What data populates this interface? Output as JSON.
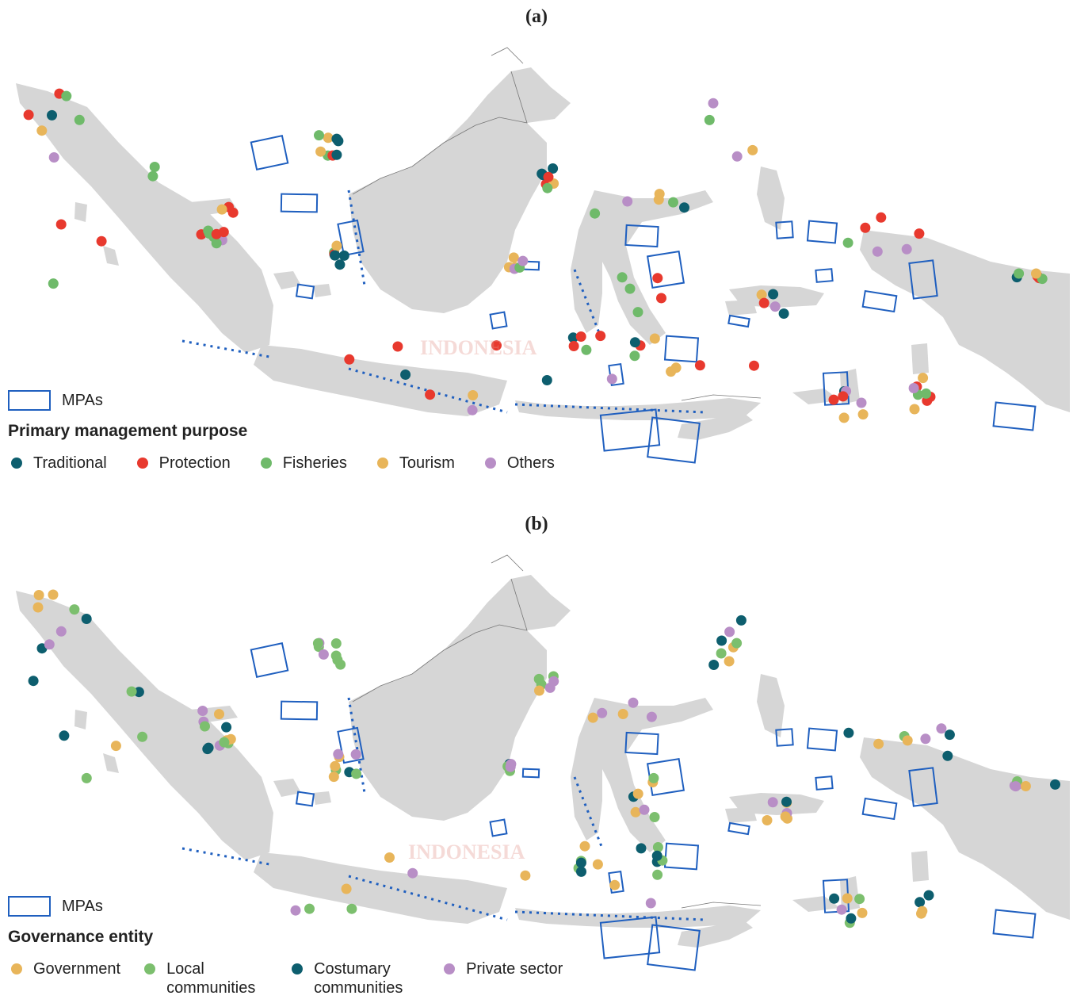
{
  "panels": [
    {
      "label": "(a)",
      "country_label": "INDONESIA",
      "mpa_label": "MPAs",
      "legend_title": "Primary management purpose",
      "legend": [
        {
          "label": "Traditional",
          "color": "#0d5e6e"
        },
        {
          "label": "Protection",
          "color": "#e8392e"
        },
        {
          "label": "Fisheries",
          "color": "#6fba6a"
        },
        {
          "label": "Tourism",
          "color": "#e8b55a"
        },
        {
          "label": "Others",
          "color": "#b88ec6"
        }
      ]
    },
    {
      "label": "(b)",
      "country_label": "INDONESIA",
      "mpa_label": "MPAs",
      "legend_title": "Governance entity",
      "legend": [
        {
          "label": "Government",
          "color": "#e8b55a"
        },
        {
          "label": "Local communities",
          "color": "#7cbf6e"
        },
        {
          "label": "Costumary communities",
          "color": "#0d5e6e"
        },
        {
          "label": "Private sector",
          "color": "#b88ec6"
        }
      ]
    }
  ],
  "colors": {
    "land": "#d6d6d6",
    "mpa_outline": "#1f5fbf",
    "neighbor_outline": "#777777"
  }
}
